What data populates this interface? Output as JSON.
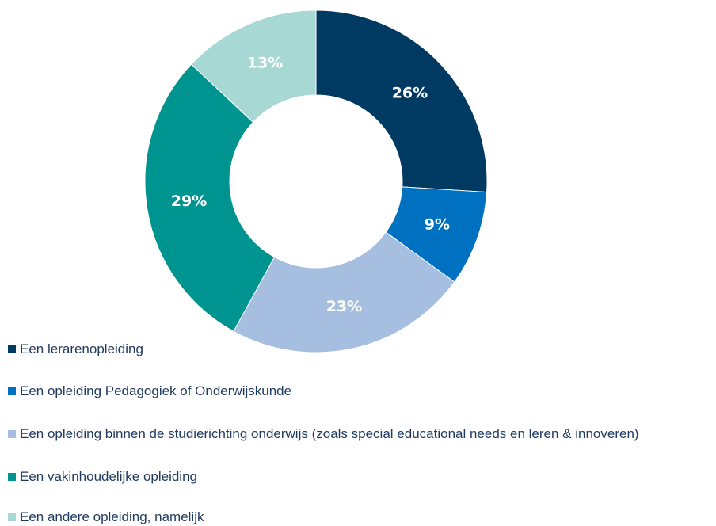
{
  "chart_data": {
    "type": "donut",
    "categories": [
      "Een lerarenopleiding",
      "Een opleiding Pedagogiek of Onderwijskunde",
      "Een opleiding binnen de studierichting onderwijs (zoals special educational needs en leren & innoveren)",
      "Een vakinhoudelijke opleiding",
      "Een andere opleiding, namelijk"
    ],
    "values": [
      26,
      9,
      23,
      29,
      13
    ],
    "value_labels": [
      "26%",
      "9%",
      "23%",
      "29%",
      "13%"
    ],
    "colors": [
      "#003a63",
      "#0070c0",
      "#a6bfe0",
      "#009490",
      "#a8d8d4"
    ]
  }
}
